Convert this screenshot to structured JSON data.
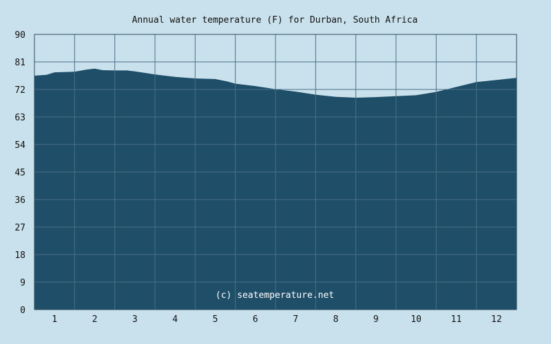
{
  "chart_data": {
    "type": "area",
    "title": "Annual water temperature (F) for Durban, South Africa",
    "xlabel": "",
    "ylabel": "",
    "x_ticks": [
      "1",
      "2",
      "3",
      "4",
      "5",
      "6",
      "7",
      "8",
      "9",
      "10",
      "11",
      "12"
    ],
    "y_ticks": [
      "0",
      "9",
      "18",
      "27",
      "36",
      "45",
      "54",
      "63",
      "72",
      "81",
      "90"
    ],
    "xlim": [
      0.5,
      12.5
    ],
    "ylim": [
      0,
      90
    ],
    "grid": true,
    "legend": "none",
    "x": [
      0.5,
      0.8,
      1.0,
      1.5,
      1.8,
      2.0,
      2.2,
      2.5,
      2.8,
      3.0,
      3.3,
      3.5,
      4.0,
      4.5,
      5.0,
      5.3,
      5.5,
      6.0,
      6.5,
      7.0,
      7.5,
      8.0,
      8.5,
      9.0,
      9.5,
      10.0,
      10.5,
      11.0,
      11.5,
      12.0,
      12.5
    ],
    "y": [
      76.5,
      76.8,
      77.6,
      77.8,
      78.5,
      78.8,
      78.3,
      78.2,
      78.2,
      77.9,
      77.3,
      76.9,
      76.1,
      75.6,
      75.4,
      74.6,
      73.9,
      73.1,
      72.1,
      71.3,
      70.3,
      69.6,
      69.3,
      69.5,
      69.8,
      70.1,
      71.2,
      72.8,
      74.4,
      75.1,
      75.8
    ],
    "colors": {
      "area": "#1f4e68",
      "background": "#c9e1ec",
      "grid": "#4a6f86"
    },
    "annotation": "(c) seatemperature.net"
  }
}
